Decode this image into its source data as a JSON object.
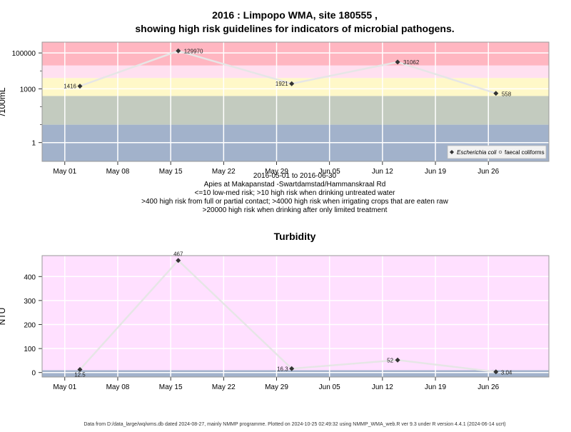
{
  "title_line1": "2016 : Limpopo WMA, site 180555 ,",
  "title_line2": "showing high risk guidelines for indicators of microbial pathogens.",
  "notes": {
    "line1": "2016-05-01 to 2016-06-30",
    "line2": "Apies at Makapanstad -Swartdamstad/Hammanskraal Rd",
    "line3": "<=10 low-med risk; >10 high risk when drinking untreated water",
    "line4": ">400 high risk from full or partial contact; >4000 high risk when irrigating crops that are eaten raw",
    "line5": ">20000 high risk when drinking after only limited treatment"
  },
  "footer": "Data from D:/data_large/wq/wms.db dated 2024-08-27, mainly NMMP programme. Plotted on 2024-10-25 02:49:32 using NMMP_WMA_web.R ver 9.3 under R version 4.4.1 (2024-06-14 ucrt)",
  "colors": {
    "band_red": "#ffb6c1",
    "band_pink": "#ffe0f0",
    "band_yellow": "#fff8c8",
    "band_green": "#c3cbbf",
    "band_blue": "#a2b2cb",
    "turbidity_bg": "#ffe0ff",
    "turbidity_base": "#a2b2cb",
    "line": "#e6e6e6",
    "grid": "#ffffff",
    "marker": "#333333"
  },
  "chart_data": [
    {
      "type": "line",
      "title": "",
      "ylabel": "/100mL",
      "yscale": "log",
      "x_tick_labels": [
        "May 01",
        "May 08",
        "May 15",
        "May 22",
        "May 29",
        "Jun 05",
        "Jun 12",
        "Jun 19",
        "Jun 26"
      ],
      "x_tick_dates": [
        "2016-05-01",
        "2016-05-08",
        "2016-05-15",
        "2016-05-22",
        "2016-05-29",
        "2016-06-05",
        "2016-06-12",
        "2016-06-19",
        "2016-06-26"
      ],
      "y_tick_labels": [
        "1",
        "1000",
        "100000"
      ],
      "y_tick_values": [
        1,
        1000,
        100000
      ],
      "xlim": [
        "2016-04-28",
        "2016-07-04"
      ],
      "ylim": [
        0.09,
        400000
      ],
      "risk_bands": [
        {
          "from": 0.09,
          "to": 10,
          "color_key": "band_blue"
        },
        {
          "from": 10,
          "to": 400,
          "color_key": "band_green"
        },
        {
          "from": 400,
          "to": 4000,
          "color_key": "band_yellow"
        },
        {
          "from": 4000,
          "to": 20000,
          "color_key": "band_pink"
        },
        {
          "from": 20000,
          "to": 400000,
          "color_key": "band_red"
        }
      ],
      "legend": {
        "position": "bottom-right",
        "entries": [
          "Escherichia coli",
          "faecal coliforms"
        ]
      },
      "series": [
        {
          "name": "Escherichia coli",
          "points": [
            {
              "x": "2016-05-03",
              "y": 1416,
              "label": "1416"
            },
            {
              "x": "2016-05-16",
              "y": 129970,
              "label": "129970"
            },
            {
              "x": "2016-05-31",
              "y": 1921,
              "label": "1921"
            },
            {
              "x": "2016-06-14",
              "y": 31062,
              "label": "31062"
            },
            {
              "x": "2016-06-27",
              "y": 558,
              "label": "558"
            }
          ]
        }
      ]
    },
    {
      "type": "line",
      "title": "Turbidity",
      "ylabel": "NTU",
      "x_tick_labels": [
        "May 01",
        "May 08",
        "May 15",
        "May 22",
        "May 29",
        "Jun 05",
        "Jun 12",
        "Jun 19",
        "Jun 26"
      ],
      "x_tick_dates": [
        "2016-05-01",
        "2016-05-08",
        "2016-05-15",
        "2016-05-22",
        "2016-05-29",
        "2016-06-05",
        "2016-06-12",
        "2016-06-19",
        "2016-06-26"
      ],
      "y_tick_labels": [
        "0",
        "100",
        "200",
        "300",
        "400"
      ],
      "y_tick_values": [
        0,
        100,
        200,
        300,
        400
      ],
      "xlim": [
        "2016-04-28",
        "2016-07-04"
      ],
      "ylim": [
        -18.6,
        487
      ],
      "risk_bands": [
        {
          "from": -18.6,
          "to": 10,
          "color_key": "turbidity_base"
        },
        {
          "from": 10,
          "to": 487,
          "color_key": "turbidity_bg"
        }
      ],
      "series": [
        {
          "name": "Turbidity",
          "points": [
            {
              "x": "2016-05-03",
              "y": 12.5,
              "label": "12.5"
            },
            {
              "x": "2016-05-16",
              "y": 467,
              "label": "467"
            },
            {
              "x": "2016-05-31",
              "y": 16.3,
              "label": "16.3"
            },
            {
              "x": "2016-06-14",
              "y": 52,
              "label": "52"
            },
            {
              "x": "2016-06-27",
              "y": 3.04,
              "label": "3.04"
            }
          ]
        }
      ]
    }
  ]
}
